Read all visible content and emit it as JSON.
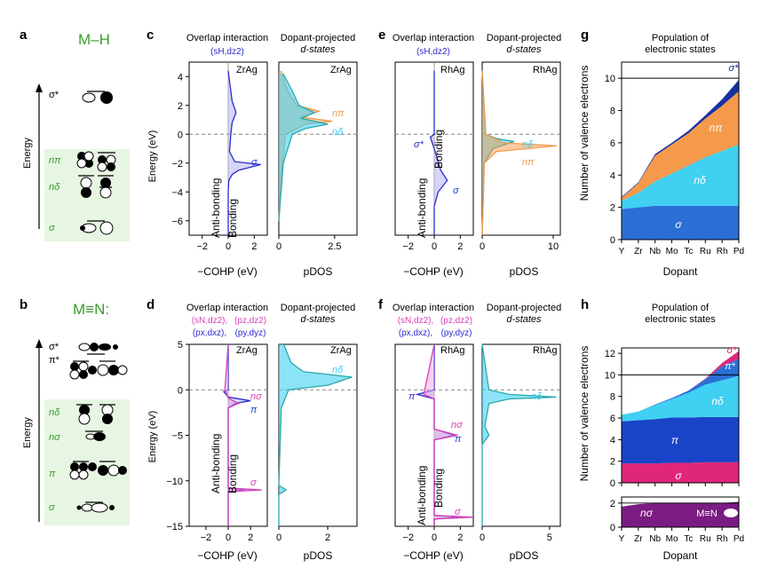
{
  "colors": {
    "sigma": "#2b6fd6",
    "pi": "#1a44c8",
    "n_delta": "#3fd0f2",
    "n_pi": "#f59a4b",
    "sigma_star": "#1531a0",
    "n_sigma": "#7a1c82",
    "sigma_star_n": "#e0267a",
    "cohp_line": "#2c2ccf",
    "cohp_fill": "#b9b9f2",
    "cohp_magenta": "#d83fb8",
    "green": "#3b9c2e",
    "green_box": "#e7f6e2",
    "gray": "#9a9a9a"
  },
  "labels": {
    "panel_a": "a",
    "panel_b": "b",
    "panel_c": "c",
    "panel_d": "d",
    "panel_e": "e",
    "panel_f": "f",
    "panel_g": "g",
    "panel_h": "h",
    "mh_title": "M–H",
    "mn_title": "M≡N:",
    "energy": "Energy",
    "energy_ev": "Energy (eV)",
    "cohp_axis": "−COHP (eV)",
    "pdos_axis": "pDOS",
    "overlap": "Overlap interaction",
    "dopant_proj_1": "Dopant-projected",
    "dopant_proj_2": "d-states",
    "sh_dz2": "(sH,dz2)",
    "snz_dz2": "(sN,dz2),",
    "pz_dz2": "(pz,dz2)",
    "px_dxz": "(px,dxz),",
    "py_dyz": "(py,dyz)",
    "antibonding": "Anti-bonding",
    "bonding": "Bonding",
    "zrag": "ZrAg",
    "rhag": "RhAg",
    "population_1": "Population of",
    "population_2": "electronic states",
    "nve": "Number of valence electrons",
    "dopant": "Dopant",
    "mn_inset": "M≡N",
    "sym_sigma_star": "σ*",
    "sym_pi_star": "π*",
    "sym_n_pi": "nπ",
    "sym_n_delta": "nδ",
    "sym_sigma": "σ",
    "sym_n_sigma": "nσ",
    "sym_pi": "π"
  },
  "chart_data": [
    {
      "panel": "g",
      "type": "area",
      "title": "Population of electronic states",
      "xlabel": "Dopant",
      "ylabel": "Number of valence electrons",
      "categories": [
        "Y",
        "Zr",
        "Nb",
        "Mo",
        "Tc",
        "Ru",
        "Rh",
        "Pd"
      ],
      "ylim": [
        0,
        11
      ],
      "yticks": [
        0,
        2,
        4,
        6,
        8,
        10
      ],
      "reference_line": 10,
      "series": [
        {
          "name": "σ",
          "values": [
            1.9,
            2.0,
            2.1,
            2.1,
            2.1,
            2.1,
            2.1,
            2.1
          ]
        },
        {
          "name": "nδ",
          "values": [
            0.5,
            0.9,
            1.5,
            2.0,
            2.5,
            3.0,
            3.4,
            3.8
          ]
        },
        {
          "name": "nπ",
          "values": [
            0.2,
            0.6,
            1.6,
            1.8,
            2.0,
            2.4,
            2.8,
            3.3
          ]
        },
        {
          "name": "σ*",
          "values": [
            0.05,
            0.05,
            0.1,
            0.1,
            0.15,
            0.2,
            0.4,
            0.7
          ]
        }
      ]
    },
    {
      "panel": "h",
      "type": "area",
      "title": "Population of electronic states",
      "xlabel": "Dopant",
      "ylabel": "Number of valence electrons",
      "categories": [
        "Y",
        "Zr",
        "Nb",
        "Mo",
        "Tc",
        "Ru",
        "Rh",
        "Pd"
      ],
      "ylim": [
        0,
        12.5
      ],
      "yticks": [
        0,
        2,
        4,
        6,
        8,
        10,
        12
      ],
      "reference_line": 10,
      "series": [
        {
          "name": "σ",
          "values": [
            1.8,
            1.8,
            1.8,
            1.85,
            1.85,
            1.9,
            1.9,
            1.9
          ]
        },
        {
          "name": "π",
          "values": [
            3.9,
            4.0,
            4.1,
            4.2,
            4.2,
            4.2,
            4.2,
            4.2
          ]
        },
        {
          "name": "nδ",
          "values": [
            0.6,
            0.8,
            1.3,
            1.7,
            2.3,
            3.0,
            3.4,
            3.8
          ]
        },
        {
          "name": "π*",
          "values": [
            0,
            0,
            0.05,
            0.1,
            0.2,
            0.5,
            1.3,
            1.6
          ]
        },
        {
          "name": "σ*",
          "values": [
            0,
            0,
            0,
            0,
            0,
            0.05,
            0.3,
            0.7
          ]
        }
      ],
      "inset": {
        "ylim": [
          0,
          2.5
        ],
        "ytick_labels": [
          "0",
          "2"
        ],
        "series": [
          {
            "name": "nσ",
            "values": [
              1.7,
              1.9,
              2.0,
              2.0,
              2.0,
              2.0,
              2.0,
              2.1
            ]
          }
        ]
      }
    },
    {
      "panel": "c",
      "type": "line",
      "subtype": "COHP",
      "system": "ZrAg",
      "xlim": [
        -3,
        3
      ],
      "xticks": [
        -2,
        0,
        2
      ],
      "ylim": [
        -7,
        5
      ],
      "yticks": [
        -6,
        -4,
        -2,
        0,
        2,
        4
      ],
      "xlabel": "−COHP (eV)",
      "ylabel": "Energy (eV)",
      "series": [
        {
          "name": "(sH,dz2)",
          "points": [
            [
              0,
              -7
            ],
            [
              0,
              -4
            ],
            [
              0.05,
              -3.2
            ],
            [
              0.3,
              -2.8
            ],
            [
              0.8,
              -2.5
            ],
            [
              2.5,
              -2.1
            ],
            [
              0.5,
              -1.9
            ],
            [
              0.1,
              -1.2
            ],
            [
              0.2,
              0
            ],
            [
              0.3,
              0.8
            ],
            [
              0.6,
              1.5
            ],
            [
              0.3,
              2.3
            ],
            [
              0.2,
              3
            ],
            [
              0,
              4.4
            ]
          ]
        }
      ]
    },
    {
      "panel": "c",
      "type": "line",
      "subtype": "pDOS",
      "system": "ZrAg",
      "xlim": [
        0,
        3.5
      ],
      "xticks": [
        0,
        2.5
      ],
      "xtick_labels": [
        "0",
        "2.5"
      ],
      "ylim": [
        -7,
        5
      ],
      "series": [
        {
          "name": "nπ",
          "points": [
            [
              0,
              -6
            ],
            [
              0.1,
              -3
            ],
            [
              0.3,
              0
            ],
            [
              1.2,
              0.7
            ],
            [
              2.4,
              0.9
            ],
            [
              1.0,
              1.2
            ],
            [
              1.8,
              1.6
            ],
            [
              0.8,
              2
            ],
            [
              0.4,
              3
            ],
            [
              0.1,
              4.4
            ]
          ]
        },
        {
          "name": "nδ",
          "points": [
            [
              0,
              -6
            ],
            [
              0.2,
              -2
            ],
            [
              0.6,
              0
            ],
            [
              1.2,
              0.4
            ],
            [
              2.2,
              0.7
            ],
            [
              1.0,
              1.1
            ],
            [
              1.6,
              1.5
            ],
            [
              0.9,
              2
            ],
            [
              0.6,
              3
            ],
            [
              0.2,
              4.2
            ]
          ]
        }
      ]
    },
    {
      "panel": "d",
      "type": "line",
      "subtype": "COHP",
      "system": "ZrAg",
      "xlim": [
        -3.5,
        3.5
      ],
      "xticks": [
        -2,
        0,
        2
      ],
      "ylim": [
        -15,
        5
      ],
      "yticks": [
        -15,
        -10,
        -5,
        0,
        5
      ],
      "xlabel": "−COHP (eV)",
      "ylabel": "Energy (eV)",
      "series": [
        {
          "name": "(px,dxz),(py,dyz)",
          "points": [
            [
              0,
              -15
            ],
            [
              0,
              -11.2
            ],
            [
              1.5,
              -11
            ],
            [
              0,
              -10.8
            ],
            [
              0,
              -2
            ],
            [
              0.6,
              -1.5
            ],
            [
              2.0,
              -1.2
            ],
            [
              0,
              -0.8
            ],
            [
              -0.4,
              -0.2
            ],
            [
              0,
              0
            ],
            [
              0,
              5
            ]
          ]
        },
        {
          "name": "(sN,dz2),(pz,dz2)",
          "points": [
            [
              0,
              -15
            ],
            [
              0,
              -11.2
            ],
            [
              3,
              -11
            ],
            [
              0,
              -10.8
            ],
            [
              0,
              -2
            ],
            [
              0.9,
              -1.5
            ],
            [
              0,
              -0.9
            ],
            [
              -0.3,
              0
            ],
            [
              0,
              5
            ]
          ]
        }
      ]
    },
    {
      "panel": "d",
      "type": "line",
      "subtype": "pDOS",
      "system": "ZrAg",
      "xlim": [
        0,
        3.2
      ],
      "xticks": [
        0,
        2
      ],
      "ylim": [
        -15,
        5
      ],
      "series": [
        {
          "name": "nδ",
          "points": [
            [
              0,
              -15
            ],
            [
              0,
              -11.5
            ],
            [
              0.3,
              -11
            ],
            [
              0,
              -10.5
            ],
            [
              0.1,
              -2
            ],
            [
              0.4,
              0
            ],
            [
              2.0,
              0.5
            ],
            [
              3.0,
              1.4
            ],
            [
              1.0,
              2
            ],
            [
              0.5,
              3
            ],
            [
              0.2,
              5
            ]
          ]
        }
      ]
    },
    {
      "panel": "e",
      "type": "line",
      "subtype": "COHP",
      "system": "RhAg",
      "xlim": [
        -3,
        3
      ],
      "xticks": [
        -2,
        0,
        2
      ],
      "ylim": [
        -7,
        5
      ],
      "yticks": [
        -6,
        -4,
        -2,
        0,
        2,
        4
      ],
      "xlabel": "−COHP (eV)",
      "series": [
        {
          "name": "(sH,dz2)",
          "points": [
            [
              0,
              -7
            ],
            [
              0,
              -5
            ],
            [
              0.3,
              -4
            ],
            [
              1.0,
              -3.2
            ],
            [
              0.5,
              -2.5
            ],
            [
              0,
              -1
            ],
            [
              -0.3,
              -0.2
            ],
            [
              0,
              0
            ],
            [
              0,
              4.4
            ]
          ]
        }
      ]
    },
    {
      "panel": "e",
      "type": "line",
      "subtype": "pDOS",
      "system": "RhAg",
      "xlim": [
        0,
        11
      ],
      "xticks": [
        0,
        10
      ],
      "ylim": [
        -7,
        5
      ],
      "series": [
        {
          "name": "nδ",
          "points": [
            [
              0,
              -7
            ],
            [
              0.3,
              -2
            ],
            [
              1.5,
              -1
            ],
            [
              4.5,
              -0.5
            ],
            [
              2,
              -0.3
            ],
            [
              0.5,
              0
            ],
            [
              0,
              4.4
            ]
          ]
        },
        {
          "name": "nπ",
          "points": [
            [
              0,
              -7
            ],
            [
              0.3,
              -2
            ],
            [
              2.0,
              -1.2
            ],
            [
              10.5,
              -0.8
            ],
            [
              3,
              -0.6
            ],
            [
              0.5,
              0
            ],
            [
              0,
              4.4
            ]
          ]
        }
      ]
    },
    {
      "panel": "f",
      "type": "line",
      "subtype": "COHP",
      "system": "RhAg",
      "xlim": [
        -3,
        3
      ],
      "xticks": [
        -2,
        0,
        2
      ],
      "ylim": [
        -15,
        5
      ],
      "xlabel": "−COHP (eV)",
      "series": [
        {
          "name": "(px,dxz),(py,dyz)",
          "points": [
            [
              0,
              -15
            ],
            [
              0,
              -14.2
            ],
            [
              2,
              -14
            ],
            [
              0,
              -13.8
            ],
            [
              0,
              -5.5
            ],
            [
              1.5,
              -5
            ],
            [
              0,
              -4.3
            ],
            [
              0,
              -1
            ],
            [
              -1.3,
              -0.5
            ],
            [
              0,
              0
            ],
            [
              0,
              5
            ]
          ]
        },
        {
          "name": "(sN,dz2),(pz,dz2)",
          "points": [
            [
              0,
              -15
            ],
            [
              0,
              -14.2
            ],
            [
              3,
              -14
            ],
            [
              0,
              -13.8
            ],
            [
              0,
              -5.5
            ],
            [
              1.8,
              -5
            ],
            [
              0,
              -4.3
            ],
            [
              0,
              -1
            ],
            [
              -0.8,
              -0.5
            ],
            [
              0,
              5
            ]
          ]
        }
      ]
    },
    {
      "panel": "f",
      "type": "line",
      "subtype": "pDOS",
      "system": "RhAg",
      "xlim": [
        0,
        5.8
      ],
      "xticks": [
        0,
        5
      ],
      "ylim": [
        -15,
        5
      ],
      "series": [
        {
          "name": "nδ",
          "points": [
            [
              0,
              -15
            ],
            [
              0,
              -6
            ],
            [
              0.5,
              -5
            ],
            [
              0.2,
              -4
            ],
            [
              0.5,
              -1.5
            ],
            [
              2,
              -1
            ],
            [
              5.5,
              -0.8
            ],
            [
              2,
              -0.5
            ],
            [
              0.5,
              0
            ],
            [
              0.3,
              2
            ],
            [
              0,
              5
            ]
          ]
        }
      ]
    }
  ]
}
